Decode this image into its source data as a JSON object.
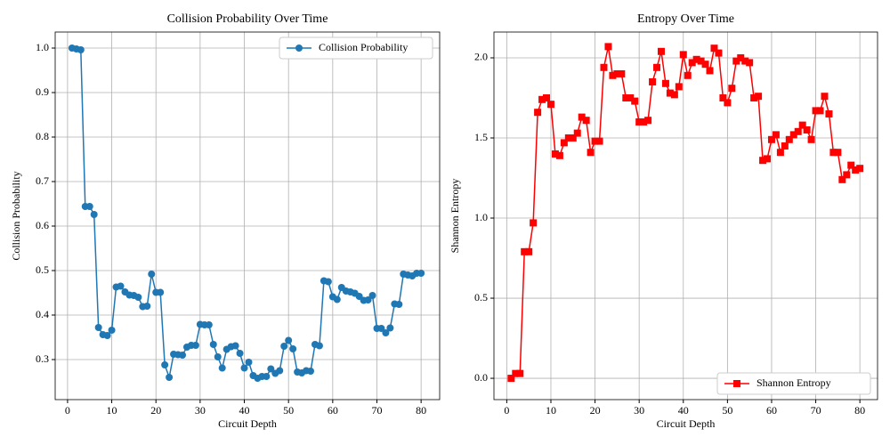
{
  "chart_data": [
    {
      "type": "line",
      "title": "Collision Probability Over Time",
      "xlabel": "Circuit Depth",
      "ylabel": "Collision Probability",
      "x": [
        1,
        2,
        3,
        4,
        5,
        6,
        7,
        8,
        9,
        10,
        11,
        12,
        13,
        14,
        15,
        16,
        17,
        18,
        19,
        20,
        21,
        22,
        23,
        24,
        25,
        26,
        27,
        28,
        29,
        30,
        31,
        32,
        33,
        34,
        35,
        36,
        37,
        38,
        39,
        40,
        41,
        42,
        43,
        44,
        45,
        46,
        47,
        48,
        49,
        50,
        51,
        52,
        53,
        54,
        55,
        56,
        57,
        58,
        59,
        60,
        61,
        62,
        63,
        64,
        65,
        66,
        67,
        68,
        69,
        70,
        71,
        72,
        73,
        74,
        75,
        76,
        77,
        78,
        79,
        80
      ],
      "series": [
        {
          "name": "Collision Probability",
          "color": "#1f77b4",
          "marker": "circle",
          "values": [
            1.0,
            0.998,
            0.996,
            0.644,
            0.644,
            0.626,
            0.372,
            0.356,
            0.354,
            0.366,
            0.463,
            0.465,
            0.452,
            0.445,
            0.444,
            0.44,
            0.419,
            0.42,
            0.492,
            0.451,
            0.451,
            0.288,
            0.26,
            0.312,
            0.311,
            0.31,
            0.328,
            0.332,
            0.332,
            0.379,
            0.378,
            0.378,
            0.334,
            0.306,
            0.281,
            0.323,
            0.329,
            0.331,
            0.314,
            0.281,
            0.294,
            0.264,
            0.258,
            0.262,
            0.262,
            0.279,
            0.269,
            0.275,
            0.33,
            0.343,
            0.324,
            0.272,
            0.27,
            0.275,
            0.274,
            0.334,
            0.331,
            0.477,
            0.475,
            0.441,
            0.435,
            0.462,
            0.454,
            0.452,
            0.449,
            0.442,
            0.433,
            0.434,
            0.444,
            0.37,
            0.37,
            0.36,
            0.371,
            0.425,
            0.424,
            0.492,
            0.49,
            0.488,
            0.494,
            0.494
          ]
        }
      ],
      "xlim": [
        -2.8,
        84.2
      ],
      "ylim": [
        0.21,
        1.036
      ],
      "xticks": [
        0,
        10,
        20,
        30,
        40,
        50,
        60,
        70,
        80
      ],
      "yticks": [
        0.3,
        0.4,
        0.5,
        0.6,
        0.7,
        0.8,
        0.9,
        {
          "value": 1.0,
          "label": "1.0"
        }
      ],
      "grid": true,
      "legend": "upper right"
    },
    {
      "type": "line",
      "title": "Entropy Over Time",
      "xlabel": "Circuit Depth",
      "ylabel": "Shannon Entropy",
      "x": [
        1,
        2,
        3,
        4,
        5,
        6,
        7,
        8,
        9,
        10,
        11,
        12,
        13,
        14,
        15,
        16,
        17,
        18,
        19,
        20,
        21,
        22,
        23,
        24,
        25,
        26,
        27,
        28,
        29,
        30,
        31,
        32,
        33,
        34,
        35,
        36,
        37,
        38,
        39,
        40,
        41,
        42,
        43,
        44,
        45,
        46,
        47,
        48,
        49,
        50,
        51,
        52,
        53,
        54,
        55,
        56,
        57,
        58,
        59,
        60,
        61,
        62,
        63,
        64,
        65,
        66,
        67,
        68,
        69,
        70,
        71,
        72,
        73,
        74,
        75,
        76,
        77,
        78,
        79,
        80
      ],
      "series": [
        {
          "name": "Shannon Entropy",
          "color": "#ff0000",
          "marker": "square",
          "values": [
            0.0,
            0.03,
            0.03,
            0.79,
            0.79,
            0.97,
            1.66,
            1.74,
            1.75,
            1.71,
            1.4,
            1.39,
            1.47,
            1.5,
            1.5,
            1.53,
            1.63,
            1.61,
            1.41,
            1.48,
            1.48,
            1.94,
            2.07,
            1.89,
            1.9,
            1.9,
            1.75,
            1.75,
            1.73,
            1.6,
            1.6,
            1.61,
            1.85,
            1.94,
            2.04,
            1.84,
            1.78,
            1.77,
            1.82,
            2.02,
            1.89,
            1.97,
            1.99,
            1.98,
            1.96,
            1.92,
            2.06,
            2.03,
            1.75,
            1.72,
            1.81,
            1.98,
            2.0,
            1.98,
            1.97,
            1.75,
            1.76,
            1.36,
            1.37,
            1.49,
            1.52,
            1.41,
            1.45,
            1.49,
            1.52,
            1.54,
            1.58,
            1.55,
            1.49,
            1.67,
            1.67,
            1.76,
            1.65,
            1.41,
            1.41,
            1.24,
            1.27,
            1.33,
            1.3,
            1.31
          ]
        }
      ],
      "xlim": [
        -2.9,
        84.0
      ],
      "ylim": [
        -0.133,
        2.161
      ],
      "xticks": [
        0,
        10,
        20,
        30,
        40,
        50,
        60,
        70,
        80
      ],
      "yticks": [
        {
          "value": 0.0,
          "label": "0.0"
        },
        0.5,
        {
          "value": 1.0,
          "label": "1.0"
        },
        1.5,
        {
          "value": 2.0,
          "label": "2.0"
        }
      ],
      "grid": true,
      "legend": "lower right"
    }
  ]
}
